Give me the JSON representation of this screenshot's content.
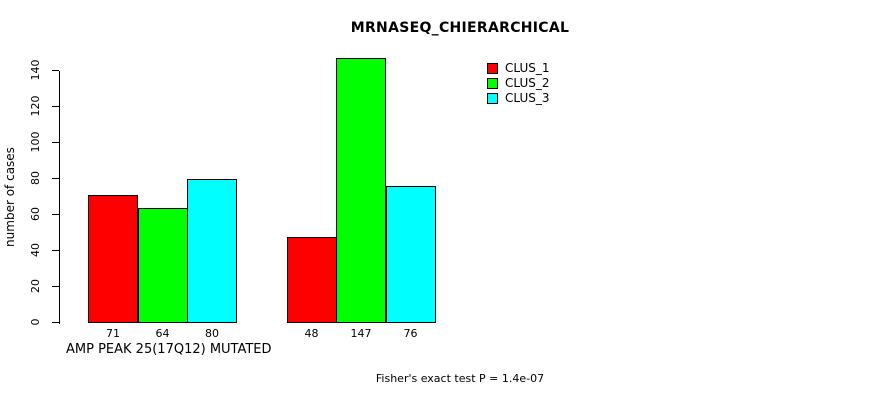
{
  "page": {
    "background": "#ffffff",
    "text_color": "#000000"
  },
  "chart_data": {
    "type": "bar",
    "title": "MRNASEQ_CHIERARCHICAL",
    "ylabel": "number of cases",
    "xlabel": "AMP PEAK 25(17Q12) MUTATED",
    "annotation": "Fisher's exact test P = 1.4e-07",
    "ylim": [
      0,
      150
    ],
    "yticks": [
      0,
      20,
      40,
      60,
      80,
      100,
      120,
      140
    ],
    "grid": false,
    "legend_position": "top-right",
    "bar_border_color": "#000000",
    "group_count": 2,
    "series": [
      {
        "name": "CLUS_1",
        "color": "#ff0000",
        "values": [
          71,
          48
        ]
      },
      {
        "name": "CLUS_2",
        "color": "#00ff00",
        "values": [
          64,
          147
        ]
      },
      {
        "name": "CLUS_3",
        "color": "#00ffff",
        "values": [
          80,
          76
        ]
      }
    ],
    "bar_value_labels": [
      [
        71,
        64,
        80
      ],
      [
        48,
        147,
        76
      ]
    ]
  }
}
